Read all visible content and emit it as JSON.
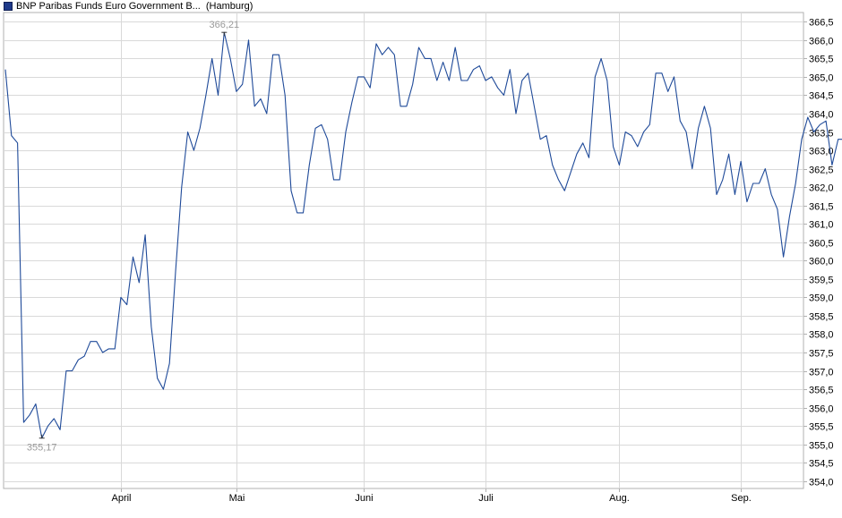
{
  "legend": {
    "series_name": "BNP Paribas Funds Euro Government B...",
    "exchange": "(Hamburg)"
  },
  "colors": {
    "line": "#1f4a99",
    "grid": "#d9d9d9",
    "axis": "#b0b0b0",
    "extreme_label": "#9a9a9a",
    "swatch": "#1f3a8a"
  },
  "chart_data": {
    "type": "line",
    "title": "",
    "xlabel": "",
    "ylabel": "",
    "ylim": [
      353.8,
      366.75
    ],
    "yticks": [
      354.0,
      354.5,
      355.0,
      355.5,
      356.0,
      356.5,
      357.0,
      357.5,
      358.0,
      358.5,
      359.0,
      359.5,
      360.0,
      360.5,
      361.0,
      361.5,
      362.0,
      362.5,
      363.0,
      363.5,
      364.0,
      364.5,
      365.0,
      365.5,
      366.0,
      366.5
    ],
    "ytick_labels": [
      "354,0",
      "354,5",
      "355,0",
      "355,5",
      "356,0",
      "356,5",
      "357,0",
      "357,5",
      "358,0",
      "358,5",
      "359,0",
      "359,5",
      "360,0",
      "360,5",
      "361,0",
      "361,5",
      "362,0",
      "362,5",
      "363,0",
      "363,5",
      "364,0",
      "364,5",
      "365,0",
      "365,5",
      "366,0",
      "366,5"
    ],
    "xmax_index": 131,
    "xticks": [
      {
        "index": 19,
        "label": "April"
      },
      {
        "index": 38,
        "label": "Mai"
      },
      {
        "index": 59,
        "label": "Juni"
      },
      {
        "index": 79,
        "label": "Juli"
      },
      {
        "index": 101,
        "label": "Aug."
      },
      {
        "index": 121,
        "label": "Sep."
      }
    ],
    "grid": true,
    "legend_position": "top-left",
    "values": [
      365.2,
      363.4,
      363.2,
      355.6,
      355.8,
      356.1,
      355.17,
      355.5,
      355.7,
      355.4,
      357.0,
      357.0,
      357.3,
      357.4,
      357.8,
      357.8,
      357.5,
      357.6,
      357.6,
      359.0,
      358.8,
      360.1,
      359.4,
      360.7,
      358.2,
      356.8,
      356.5,
      357.2,
      359.7,
      362.0,
      363.5,
      363.0,
      363.6,
      364.5,
      365.5,
      364.5,
      366.21,
      365.5,
      364.6,
      364.8,
      366.0,
      364.2,
      364.4,
      364.0,
      365.6,
      365.6,
      364.5,
      361.9,
      361.3,
      361.3,
      362.6,
      363.6,
      363.7,
      363.3,
      362.2,
      362.2,
      363.5,
      364.3,
      365.0,
      365.0,
      364.7,
      365.9,
      365.6,
      365.8,
      365.6,
      364.2,
      364.2,
      364.8,
      365.8,
      365.5,
      365.5,
      364.9,
      365.4,
      364.9,
      365.8,
      364.9,
      364.9,
      365.2,
      365.3,
      364.9,
      365.0,
      364.7,
      364.5,
      365.2,
      364.0,
      364.9,
      365.1,
      364.2,
      363.3,
      363.4,
      362.6,
      362.2,
      361.9,
      362.4,
      362.9,
      363.2,
      362.8,
      365.0,
      365.5,
      364.9,
      363.1,
      362.6,
      363.5,
      363.4,
      363.1,
      363.5,
      363.7,
      365.1,
      365.1,
      364.6,
      365.0,
      363.8,
      363.5,
      362.5,
      363.6,
      364.2,
      363.6,
      361.8,
      362.2,
      362.9,
      361.8,
      362.7,
      361.6,
      362.1,
      362.1,
      362.5,
      361.8,
      361.4,
      360.1,
      361.2,
      362.1,
      363.3,
      363.9,
      363.5,
      363.7,
      363.8,
      362.6,
      363.3,
      363.3
    ],
    "max_point": {
      "index": 36,
      "value": 366.21,
      "label": "366,21"
    },
    "min_point": {
      "index": 6,
      "value": 355.17,
      "label": "355,17"
    }
  }
}
